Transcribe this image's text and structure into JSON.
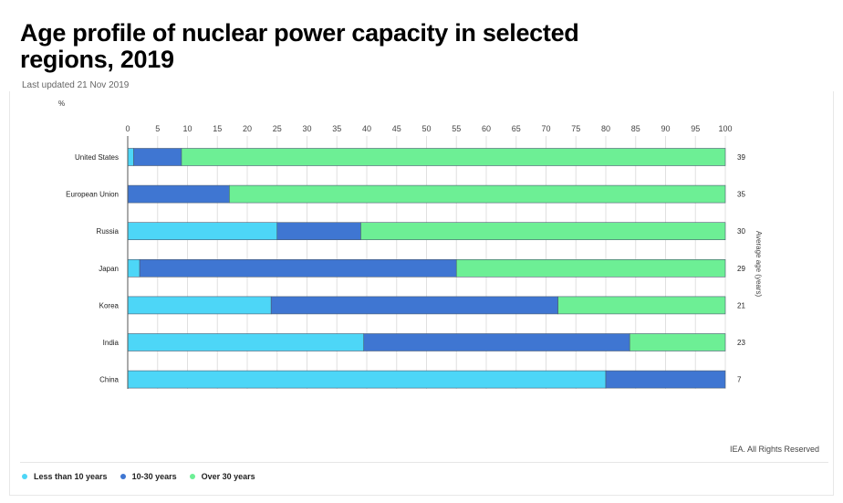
{
  "header": {
    "title": "Age profile of nuclear power capacity in selected regions, 2019",
    "updated": "Last updated 21 Nov 2019"
  },
  "footer": {
    "credit": "IEA. All Rights Reserved"
  },
  "colors": {
    "less_than_10": "#4dd6f7",
    "ten_to_30": "#3f76d2",
    "over_30": "#6def95",
    "grid": "#e0e0e0",
    "axis": "#555555"
  },
  "chart_data": {
    "type": "bar",
    "orientation": "horizontal",
    "stacked": true,
    "xlabel": "%",
    "y2label": "Average age (years)",
    "xlim": [
      0,
      100
    ],
    "xticks": [
      0,
      5,
      10,
      15,
      20,
      25,
      30,
      35,
      40,
      45,
      50,
      55,
      60,
      65,
      70,
      75,
      80,
      85,
      90,
      95,
      100
    ],
    "grid": true,
    "legend_position": "bottom-left",
    "categories": [
      "United States",
      "European Union",
      "Russia",
      "Japan",
      "Korea",
      "India",
      "China"
    ],
    "series": [
      {
        "name": "Less than 10 years",
        "color": "#4dd6f7",
        "values": [
          1,
          0,
          25,
          2,
          24,
          39.5,
          80
        ]
      },
      {
        "name": "10-30 years",
        "color": "#3f76d2",
        "values": [
          8,
          17,
          14,
          53,
          48,
          44.5,
          20
        ]
      },
      {
        "name": "Over 30 years",
        "color": "#6def95",
        "values": [
          91,
          83,
          61,
          45,
          28,
          16,
          0
        ]
      }
    ],
    "average_age": [
      39,
      35,
      30,
      29,
      21,
      23,
      7
    ]
  }
}
